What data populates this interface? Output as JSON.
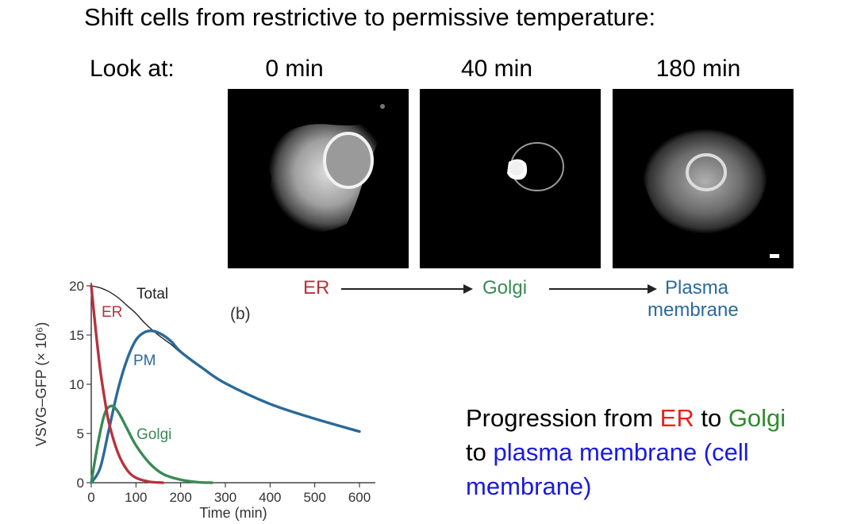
{
  "title": "Shift cells from restrictive to permissive temperature:",
  "look_at_label": "Look at:",
  "panels": [
    {
      "time": "0 min"
    },
    {
      "time": "40 min"
    },
    {
      "time": "180 min"
    }
  ],
  "flow": {
    "er": "ER",
    "golgi": "Golgi",
    "pm_line1": "Plasma",
    "pm_line2": "membrane"
  },
  "colors": {
    "er": "#b8323e",
    "golgi": "#3a8a55",
    "pm": "#2a6a9a",
    "text_er": "#e8231b",
    "text_golgi": "#2e8b2e",
    "text_pm": "#1a1adf"
  },
  "summary": {
    "prefix": "Progression from ",
    "er": "ER",
    "mid1": " to ",
    "golgi": "Golgi",
    "mid2": " to ",
    "pm": "plasma membrane (cell membrane)"
  },
  "chart_data": {
    "type": "line",
    "panel_label": "(b)",
    "xlabel": "Time (min)",
    "ylabel": "VSVG–GFP (× 10⁶)",
    "xlim": [
      0,
      600
    ],
    "ylim": [
      0,
      20
    ],
    "xticks": [
      0,
      100,
      200,
      300,
      400,
      500,
      600
    ],
    "yticks": [
      0,
      5,
      10,
      15,
      20
    ],
    "series": [
      {
        "name": "Total",
        "key": "total",
        "x": [
          0,
          20,
          40,
          60,
          80,
          100,
          120,
          150,
          180,
          200,
          250,
          300,
          400,
          500,
          600
        ],
        "y": [
          20,
          19.8,
          19.4,
          18.8,
          18,
          17.2,
          16.2,
          15,
          14,
          13.2,
          11.6,
          10.1,
          8,
          6.5,
          5.2
        ]
      },
      {
        "name": "ER",
        "key": "er",
        "x": [
          0,
          10,
          20,
          30,
          40,
          60,
          80,
          100,
          130,
          160
        ],
        "y": [
          20,
          15.5,
          11.5,
          8.5,
          6,
          3,
          1.3,
          0.5,
          0.1,
          0
        ]
      },
      {
        "name": "PM",
        "key": "pm",
        "x": [
          0,
          20,
          40,
          60,
          80,
          100,
          120,
          140,
          160,
          180,
          200,
          250,
          300,
          400,
          500,
          600
        ],
        "y": [
          0,
          1.5,
          5.5,
          9.5,
          12.5,
          14.5,
          15.3,
          15.4,
          15,
          14.3,
          13.3,
          11.6,
          10.1,
          8,
          6.5,
          5.2
        ]
      },
      {
        "name": "Golgi",
        "key": "golgi",
        "x": [
          0,
          15,
          30,
          45,
          60,
          80,
          100,
          130,
          160,
          200,
          240,
          270
        ],
        "y": [
          0,
          4,
          7,
          7.8,
          7.2,
          5.5,
          3.8,
          2,
          0.9,
          0.3,
          0.05,
          0
        ]
      }
    ]
  }
}
